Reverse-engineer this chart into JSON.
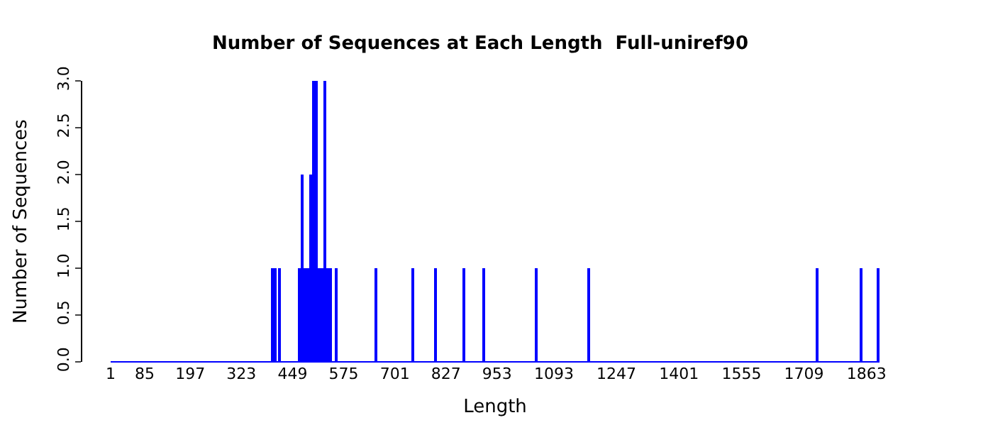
{
  "chart_data": {
    "type": "bar",
    "title": "Number of Sequences at Each Length  Full-uniref90",
    "xlabel": "Length",
    "ylabel": "Number of Sequences",
    "x": [
      400,
      408,
      416,
      465,
      472,
      479,
      486,
      493,
      500,
      507,
      514,
      521,
      528,
      535,
      542,
      558,
      653,
      744,
      800,
      870,
      920,
      1051,
      1180,
      1740,
      1851,
      1893
    ],
    "values": [
      1,
      1,
      1,
      1,
      2,
      1,
      1,
      2,
      3,
      3,
      1,
      1,
      3,
      1,
      1,
      1,
      1,
      1,
      1,
      1,
      1,
      1,
      1,
      1,
      1,
      1
    ],
    "color": "#0000ff",
    "xlim": [
      1,
      1895
    ],
    "xticks": [
      1,
      85,
      197,
      323,
      449,
      575,
      701,
      827,
      953,
      1093,
      1247,
      1401,
      1555,
      1709,
      1863
    ],
    "ylim": [
      0,
      3
    ],
    "yticks": [
      {
        "value": 0,
        "label": "0.0"
      },
      {
        "value": 0.5,
        "label": "0.5"
      },
      {
        "value": 1,
        "label": "1.0"
      },
      {
        "value": 1.5,
        "label": "1.5"
      },
      {
        "value": 2,
        "label": "2.0"
      },
      {
        "value": 2.5,
        "label": "2.5"
      },
      {
        "value": 3,
        "label": "3.0"
      }
    ]
  }
}
